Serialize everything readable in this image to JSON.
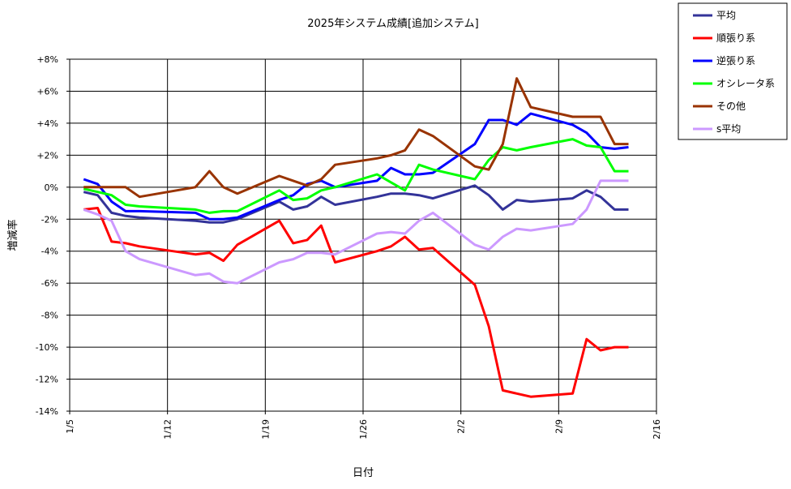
{
  "chart_data": {
    "type": "line",
    "title": "2025年システム成績[追加システム]",
    "xlabel": "日付",
    "ylabel": "増減率",
    "xlim": [
      "2025-01-05",
      "2025-02-16"
    ],
    "ylim": [
      -14,
      8
    ],
    "y_tick_step": 2,
    "x_tick_labels": [
      "1/5",
      "1/12",
      "1/19",
      "1/26",
      "2/2",
      "2/9",
      "2/16"
    ],
    "y_tick_labels": [
      "+8%",
      "+6%",
      "+4%",
      "+2%",
      "0%",
      "-2%",
      "-4%",
      "-6%",
      "-8%",
      "-10%",
      "-12%",
      "-14%"
    ],
    "grid": true,
    "legend_position": "right",
    "x": [
      "2025-01-06",
      "2025-01-07",
      "2025-01-08",
      "2025-01-09",
      "2025-01-10",
      "2025-01-14",
      "2025-01-15",
      "2025-01-16",
      "2025-01-17",
      "2025-01-20",
      "2025-01-21",
      "2025-01-22",
      "2025-01-23",
      "2025-01-24",
      "2025-01-27",
      "2025-01-28",
      "2025-01-29",
      "2025-01-30",
      "2025-01-31",
      "2025-02-03",
      "2025-02-04",
      "2025-02-05",
      "2025-02-06",
      "2025-02-07",
      "2025-02-10",
      "2025-02-11",
      "2025-02-12",
      "2025-02-13",
      "2025-02-14"
    ],
    "series": [
      {
        "name": "平均",
        "color": "#333399",
        "values": [
          -0.3,
          -0.5,
          -1.6,
          -1.8,
          -1.9,
          -2.1,
          -2.2,
          -2.2,
          -2.0,
          -0.9,
          -1.4,
          -1.2,
          -0.6,
          -1.1,
          -0.6,
          -0.4,
          -0.4,
          -0.5,
          -0.7,
          0.1,
          -0.5,
          -1.4,
          -0.8,
          -0.9,
          -0.7,
          -0.2,
          -0.6,
          -1.4,
          -1.4
        ]
      },
      {
        "name": "順張り系",
        "color": "#ff0000",
        "values": [
          -1.4,
          -1.3,
          -3.4,
          -3.5,
          -3.7,
          -4.2,
          -4.1,
          -4.6,
          -3.6,
          -2.1,
          -3.5,
          -3.3,
          -2.4,
          -4.7,
          -4.0,
          -3.7,
          -3.1,
          -3.9,
          -3.8,
          -6.1,
          -8.7,
          -12.7,
          -12.9,
          -13.1,
          -12.9,
          -9.5,
          -10.2,
          -10.0,
          -10.0
        ]
      },
      {
        "name": "逆張り系",
        "color": "#0000ff",
        "values": [
          0.5,
          0.2,
          -0.9,
          -1.5,
          -1.5,
          -1.6,
          -2.0,
          -2.0,
          -1.9,
          -0.8,
          -0.5,
          0.2,
          0.4,
          0.0,
          0.4,
          1.2,
          0.8,
          0.8,
          0.9,
          2.7,
          4.2,
          4.2,
          3.9,
          4.6,
          3.9,
          3.4,
          2.5,
          2.4,
          2.5
        ]
      },
      {
        "name": "オシレータ系",
        "color": "#00ff00",
        "values": [
          -0.1,
          -0.3,
          -0.5,
          -1.1,
          -1.2,
          -1.4,
          -1.6,
          -1.5,
          -1.5,
          -0.2,
          -0.8,
          -0.7,
          -0.2,
          0.0,
          0.8,
          0.3,
          -0.2,
          1.4,
          1.1,
          0.5,
          1.7,
          2.5,
          2.3,
          2.5,
          3.0,
          2.6,
          2.5,
          1.0,
          1.0
        ]
      },
      {
        "name": "その他",
        "color": "#993300",
        "values": [
          0.0,
          0.0,
          0.0,
          0.0,
          -0.6,
          0.0,
          1.0,
          0.0,
          -0.4,
          0.7,
          0.4,
          0.1,
          0.5,
          1.4,
          1.8,
          2.0,
          2.3,
          3.6,
          3.2,
          1.3,
          1.1,
          2.7,
          6.8,
          5.0,
          4.4,
          4.4,
          4.4,
          2.7,
          2.7
        ]
      },
      {
        "name": "s平均",
        "color": "#cc99ff",
        "values": [
          -1.4,
          -1.7,
          -2.1,
          -4.0,
          -4.5,
          -5.5,
          -5.4,
          -5.9,
          -6.0,
          -4.7,
          -4.5,
          -4.1,
          -4.1,
          -4.2,
          -2.9,
          -2.8,
          -2.9,
          -2.1,
          -1.6,
          -3.6,
          -3.9,
          -3.1,
          -2.6,
          -2.7,
          -2.3,
          -1.4,
          0.4,
          0.4,
          0.4
        ]
      }
    ]
  }
}
